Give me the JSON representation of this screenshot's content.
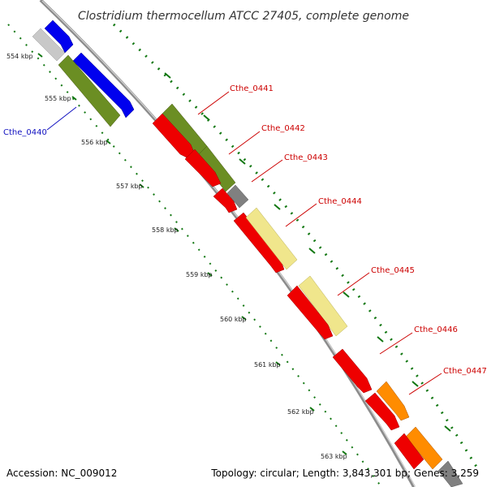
{
  "title": "Clostridium thermocellum ATCC 27405, complete genome",
  "footer": {
    "accession": "Accession: NC_009012",
    "stats": "Topology: circular; Length: 3,843,301 bp; Genes: 3,259"
  },
  "ticks": [
    "554 kbp",
    "555 kbp",
    "556 kbp",
    "557 kbp",
    "558 kbp",
    "559 kbp",
    "560 kbp",
    "561 kbp",
    "562 kbp",
    "563 kbp"
  ],
  "gene_labels": [
    {
      "name": "Cthe_0440",
      "color": "#1010c0"
    },
    {
      "name": "Cthe_0441",
      "color": "#cc0000"
    },
    {
      "name": "Cthe_0442",
      "color": "#cc0000"
    },
    {
      "name": "Cthe_0443",
      "color": "#cc0000"
    },
    {
      "name": "Cthe_0444",
      "color": "#cc0000"
    },
    {
      "name": "Cthe_0445",
      "color": "#cc0000"
    },
    {
      "name": "Cthe_0446",
      "color": "#cc0000"
    },
    {
      "name": "Cthe_0447",
      "color": "#cc0000"
    }
  ],
  "colors": {
    "backbone": "#8c8c8c",
    "tick_dots": "#117711",
    "blue": "#0000ee",
    "olive": "#6b8e23",
    "red": "#ee0000",
    "light_yellow": "#f0e68c",
    "orange": "#ff8c00",
    "grey": "#808080",
    "light_grey": "#c8c8c8"
  }
}
